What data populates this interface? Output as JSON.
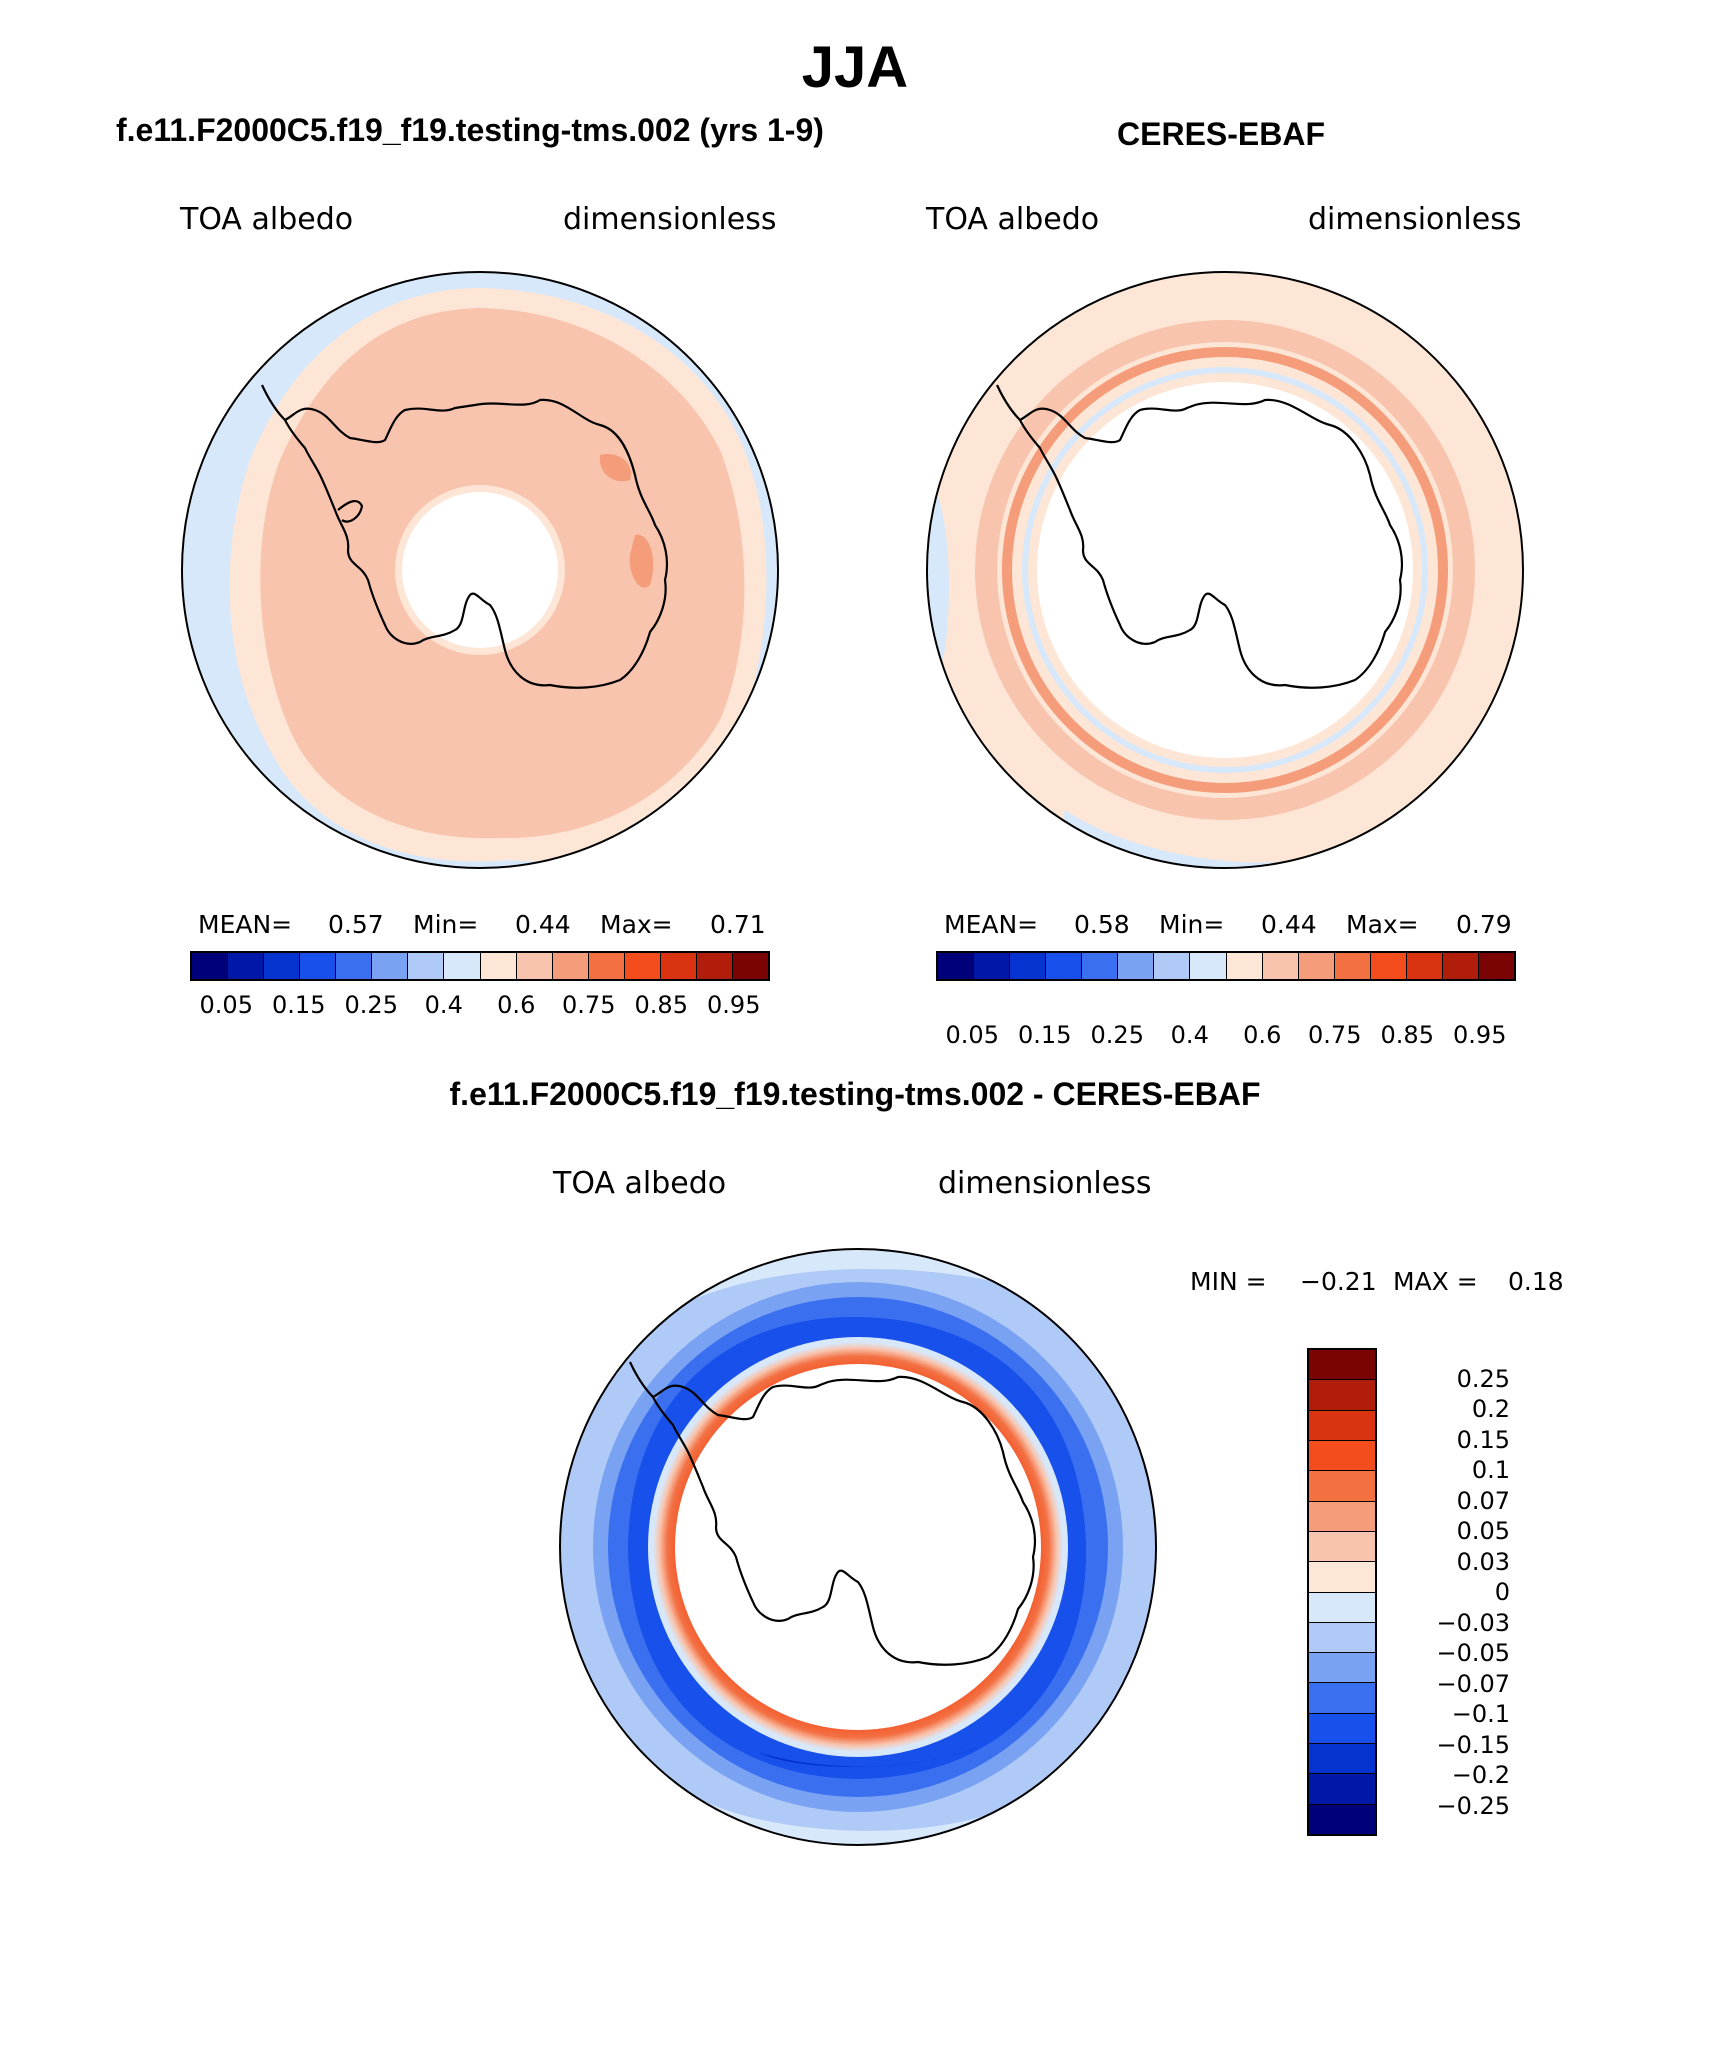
{
  "title": "JJA",
  "panels": [
    {
      "id": "model",
      "title": "f.e11.F2000C5.f19_f19.testing-tms.002 (yrs 1-9)",
      "var_label": "TOA albedo",
      "units": "dimensionless",
      "stats": {
        "mean_label": "MEAN=",
        "mean": "0.57",
        "min_label": "Min=",
        "min": "0.44",
        "max_label": "Max=",
        "max": "0.71"
      }
    },
    {
      "id": "obs",
      "title": "CERES-EBAF",
      "var_label": "TOA albedo",
      "units": "dimensionless",
      "stats": {
        "mean_label": "MEAN=",
        "mean": "0.58",
        "min_label": "Min=",
        "min": "0.44",
        "max_label": "Max=",
        "max": "0.79"
      }
    },
    {
      "id": "diff",
      "title": "f.e11.F2000C5.f19_f19.testing-tms.002 - CERES-EBAF",
      "var_label": "TOA albedo",
      "units": "dimensionless",
      "stats": {
        "min_label": "MIN =",
        "min": "−0.21",
        "max_label": "MAX =",
        "max": "0.18"
      }
    }
  ],
  "colorbar_main": {
    "colors": [
      "#00007a",
      "#0018a8",
      "#0533d0",
      "#1750ea",
      "#3a70f0",
      "#7aa2f3",
      "#b0caf8",
      "#d8e8fb",
      "#fde6d6",
      "#f8c4ad",
      "#f59c7a",
      "#f37043",
      "#f34d1d",
      "#d93312",
      "#b01e0b",
      "#7a0404"
    ],
    "labels": [
      "0.05",
      "0.15",
      "0.25",
      "0.4",
      "0.6",
      "0.75",
      "0.85",
      "0.95"
    ]
  },
  "colorbar_diff": {
    "colors_top_to_bottom": [
      "#7a0404",
      "#b01e0b",
      "#d93312",
      "#f34d1d",
      "#f37043",
      "#f59c7a",
      "#f8c4ad",
      "#fde6d6",
      "#d8e8fb",
      "#b0caf8",
      "#7aa2f3",
      "#3a70f0",
      "#1750ea",
      "#0533d0",
      "#0018a8",
      "#00007a"
    ],
    "labels": [
      "0.25",
      "0.2",
      "0.15",
      "0.1",
      "0.07",
      "0.05",
      "0.03",
      "0",
      "−0.03",
      "−0.05",
      "−0.07",
      "−0.1",
      "−0.15",
      "−0.2",
      "−0.25"
    ]
  }
}
